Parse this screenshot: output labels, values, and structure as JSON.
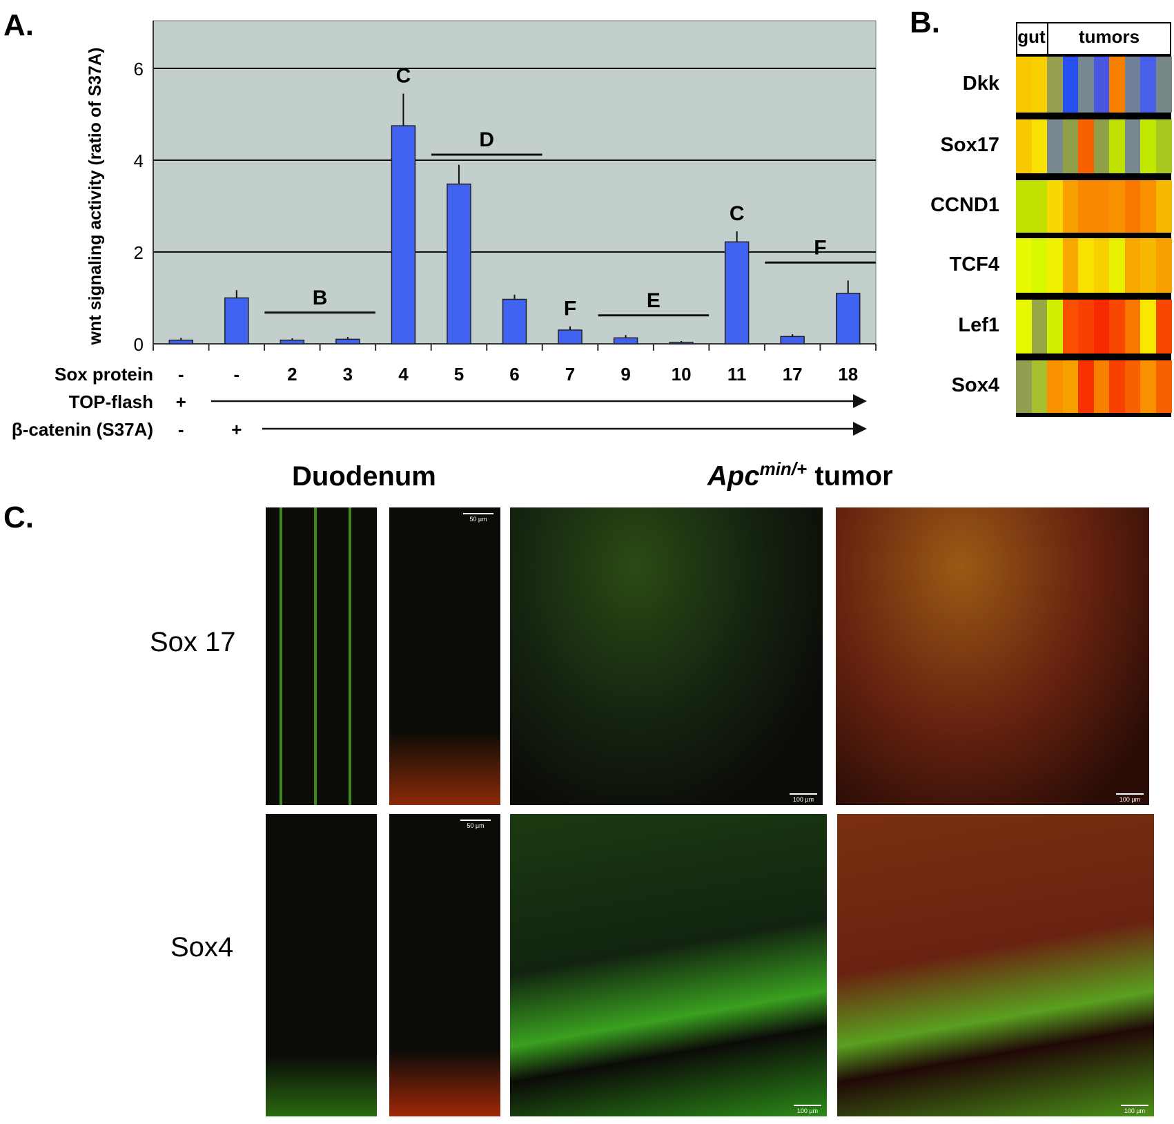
{
  "panel_labels": {
    "a": "A.",
    "b": "B.",
    "c": "C."
  },
  "chart_data": [
    {
      "type": "bar",
      "title": "",
      "ylabel": "wnt signaling activity (ratio of S37A)",
      "xlabel": "",
      "ylim": [
        0,
        7
      ],
      "yticks": [
        0,
        2,
        4,
        6
      ],
      "grid": true,
      "bar_color": "#3f63f0",
      "plot_bg": "#c3cfcc",
      "categories": [
        "-",
        "-",
        "2",
        "3",
        "4",
        "5",
        "6",
        "7",
        "9",
        "10",
        "11",
        "17",
        "18"
      ],
      "values": [
        0.08,
        1.0,
        0.08,
        0.1,
        4.75,
        3.48,
        0.97,
        0.3,
        0.13,
        0.03,
        2.22,
        0.16,
        1.1
      ],
      "error_upper": [
        0.13,
        1.17,
        0.12,
        0.15,
        5.45,
        3.9,
        1.07,
        0.38,
        0.19,
        0.06,
        2.45,
        0.21,
        1.38
      ],
      "annotations": [
        {
          "text": "B",
          "x_from": 2,
          "x_to": 3,
          "y": 0.68
        },
        {
          "text": "C",
          "x_from": 4,
          "x_to": 4,
          "y": null
        },
        {
          "text": "D",
          "x_from": 5,
          "x_to": 6,
          "y": 4.12
        },
        {
          "text": "F",
          "x_from": 7,
          "x_to": 7,
          "y": null
        },
        {
          "text": "E",
          "x_from": 8,
          "x_to": 9,
          "y": 0.62
        },
        {
          "text": "C",
          "x_from": 10,
          "x_to": 10,
          "y": null
        },
        {
          "text": "F",
          "x_from": 11,
          "x_to": 12,
          "y": 1.77
        }
      ],
      "row_labels": {
        "sox": "Sox protein",
        "top": "TOP-flash",
        "cat": "β-catenin (S37A)"
      },
      "top_flash": [
        "+"
      ],
      "catenin": [
        "-",
        "+"
      ]
    },
    {
      "type": "heatmap",
      "header": {
        "gut": "gut",
        "tumors": "tumors"
      },
      "rows": [
        "Dkk",
        "Sox17",
        "CCND1",
        "TCF4",
        "Lef1",
        "Sox4"
      ],
      "colors": [
        [
          "#f8c800",
          "#f8d000",
          "#98a050",
          "#2850f0",
          "#788890",
          "#4858e0",
          "#f88000",
          "#708098",
          "#4860e8",
          "#788888"
        ],
        [
          "#f8c800",
          "#f8e000",
          "#788890",
          "#90a048",
          "#f86000",
          "#90a048",
          "#c0e000",
          "#788890",
          "#c0e800",
          "#a8c820"
        ],
        [
          "#c0e000",
          "#c0e000",
          "#f8d800",
          "#f8a000",
          "#f88800",
          "#f88800",
          "#f89000",
          "#f87800",
          "#f89000",
          "#f8b800"
        ],
        [
          "#e8f800",
          "#d8f800",
          "#f0f000",
          "#f8a800",
          "#f8e000",
          "#f8d000",
          "#e8f000",
          "#f8a800",
          "#f8b800",
          "#f8a000"
        ],
        [
          "#e8f800",
          "#98a848",
          "#d0f000",
          "#f85000",
          "#f84000",
          "#f82800",
          "#f84800",
          "#f87800",
          "#f8e800",
          "#f84800"
        ],
        [
          "#90a050",
          "#a8c030",
          "#f89000",
          "#f8a000",
          "#f83000",
          "#f88000",
          "#f84000",
          "#f86000",
          "#f89000",
          "#f86000"
        ]
      ]
    }
  ],
  "panel_c": {
    "col_titles": {
      "duodenum": "Duodenum",
      "apc": "Apc",
      "apc_sup": "min/+",
      "tumor": " tumor"
    },
    "row_titles": [
      "Sox 17",
      "Sox4"
    ],
    "scale_small": "50 µm",
    "scale_large": "100 µm"
  }
}
